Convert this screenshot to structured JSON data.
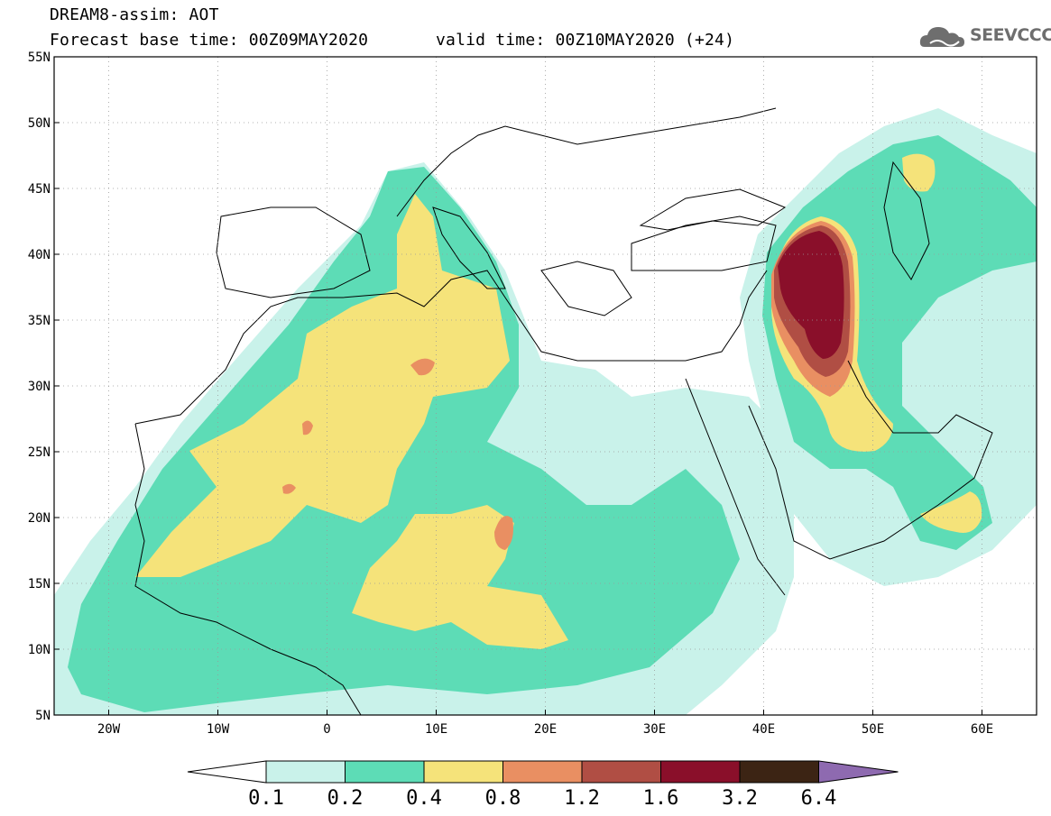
{
  "title": {
    "line1": "DREAM8-assim: AOT",
    "line2": "Forecast base time: 00Z09MAY2020",
    "line2b": "valid time: 00Z10MAY2020 (+24)"
  },
  "logo": {
    "text": "SEEVCCC",
    "icon": "cloud-icon"
  },
  "map": {
    "lon_range": [
      -25,
      65
    ],
    "lat_range": [
      5,
      55
    ],
    "lat_ticks": [
      {
        "value": 55,
        "label": "55N"
      },
      {
        "value": 50,
        "label": "50N"
      },
      {
        "value": 45,
        "label": "45N"
      },
      {
        "value": 40,
        "label": "40N"
      },
      {
        "value": 35,
        "label": "35N"
      },
      {
        "value": 30,
        "label": "30N"
      },
      {
        "value": 25,
        "label": "25N"
      },
      {
        "value": 20,
        "label": "20N"
      },
      {
        "value": 15,
        "label": "15N"
      },
      {
        "value": 10,
        "label": "10N"
      },
      {
        "value": 5,
        "label": "5N"
      }
    ],
    "lon_ticks": [
      {
        "value": -20,
        "label": "20W"
      },
      {
        "value": -10,
        "label": "10W"
      },
      {
        "value": 0,
        "label": "0"
      },
      {
        "value": 10,
        "label": "10E"
      },
      {
        "value": 20,
        "label": "20E"
      },
      {
        "value": 30,
        "label": "30E"
      },
      {
        "value": 40,
        "label": "40E"
      },
      {
        "value": 50,
        "label": "50E"
      },
      {
        "value": 60,
        "label": "60E"
      }
    ],
    "grid": "dotted"
  },
  "colorbar": {
    "labels": [
      "0.1",
      "0.2",
      "0.4",
      "0.8",
      "1.2",
      "1.6",
      "3.2",
      "6.4"
    ],
    "colors": [
      "#ffffff",
      "#c9f2ea",
      "#5ddcb6",
      "#f5e37a",
      "#e98f62",
      "#b04e44",
      "#8a0f2a",
      "#3c2414",
      "#8e6ab0"
    ]
  }
}
